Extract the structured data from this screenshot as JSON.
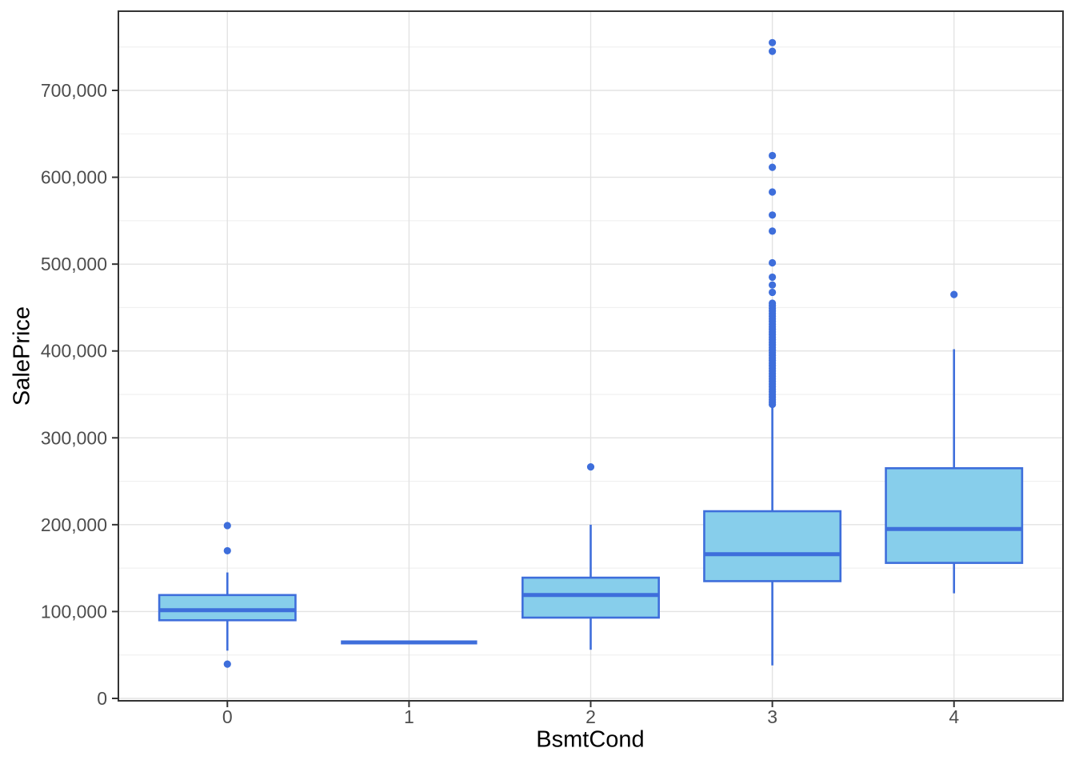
{
  "chart_data": {
    "type": "boxplot",
    "xlabel": "BsmtCond",
    "ylabel": "SalePrice",
    "categories": [
      "0",
      "1",
      "2",
      "3",
      "4"
    ],
    "ylim": [
      0,
      791000
    ],
    "grid": "major and minor horizontal gridlines, major vertical gridlines per category",
    "legend": false,
    "y_axis": {
      "ticks": [
        {
          "value": 0,
          "label": "0"
        },
        {
          "value": 100000,
          "label": "100,000"
        },
        {
          "value": 200000,
          "label": "200,000"
        },
        {
          "value": 300000,
          "label": "300,000"
        },
        {
          "value": 400000,
          "label": "400,000"
        },
        {
          "value": 500000,
          "label": "500,000"
        },
        {
          "value": 600000,
          "label": "600,000"
        },
        {
          "value": 700000,
          "label": "700,000"
        }
      ],
      "minor_step": 50000
    },
    "series": [
      {
        "category": "0",
        "min": 55000,
        "q1": 90000,
        "median": 101500,
        "q3": 119000,
        "max": 145000,
        "outliers": [
          199000,
          170000,
          39500
        ]
      },
      {
        "category": "1",
        "min": 64500,
        "q1": 64500,
        "median": 64500,
        "q3": 64500,
        "max": 64500,
        "outliers": []
      },
      {
        "category": "2",
        "min": 56000,
        "q1": 93000,
        "median": 119000,
        "q3": 139000,
        "max": 200000,
        "outliers": [
          266500
        ]
      },
      {
        "category": "3",
        "min": 38000,
        "q1": 135000,
        "median": 166000,
        "q3": 215500,
        "max": 336000,
        "outliers": [
          755000,
          745000,
          625000,
          611500,
          583000,
          556500,
          538000,
          501500,
          485000,
          476000,
          467500,
          455000,
          452000,
          449000,
          446000,
          443000,
          440000,
          437000,
          434000,
          431000,
          428000,
          425000,
          422000,
          419000,
          416000,
          413000,
          410000,
          407000,
          404000,
          401000,
          398000,
          395000,
          392000,
          389000,
          386000,
          383000,
          380000,
          377000,
          374000,
          371000,
          368000,
          365000,
          362000,
          359000,
          356000,
          353000,
          350000,
          347000,
          344000,
          341000,
          338500
        ]
      },
      {
        "category": "4",
        "min": 121000,
        "q1": 156000,
        "median": 195000,
        "q3": 265000,
        "max": 402000,
        "outliers": [
          465000
        ]
      }
    ],
    "colors": {
      "box_fill": "#87CEEB",
      "box_stroke": "#3E6EDB",
      "grid_major": "#E3E3E3",
      "grid_minor": "#F0F0F0",
      "panel_border": "#333333",
      "tick_mark": "#333333",
      "tick_text": "#4D4D4D",
      "axis_title_text": "#000000",
      "background": "#FFFFFF"
    }
  }
}
